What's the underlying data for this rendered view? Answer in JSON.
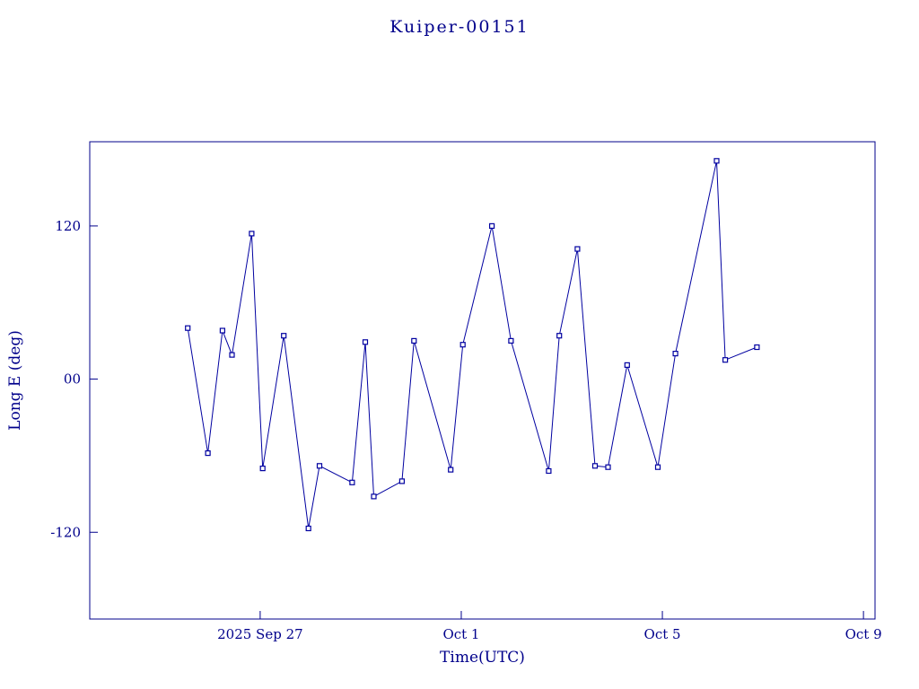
{
  "colors": {
    "axis": "#00008b",
    "text": "#00008b",
    "line": "#0000a0",
    "marker": "#0000a0",
    "background": "#ffffff"
  },
  "chart_data": {
    "type": "line",
    "title": "Kuiper-00151",
    "xlabel": "Time(UTC)",
    "ylabel": "Long E (deg)",
    "x_unit": "day of 2025 (September continuous; Oct 1 = 31, Oct 5 = 35, Oct 9 = 39)",
    "y_unit": "degrees",
    "xlim": [
      23.61,
      39.23
    ],
    "ylim": [
      -188,
      186
    ],
    "grid": false,
    "legend": "none",
    "marker": "open-square",
    "x_ticks": [
      {
        "value": 27,
        "label": "2025 Sep 27"
      },
      {
        "value": 31,
        "label": "Oct 1"
      },
      {
        "value": 35,
        "label": "Oct 5"
      },
      {
        "value": 39,
        "label": "Oct 9"
      }
    ],
    "y_ticks": [
      {
        "value": -120,
        "label": "-120"
      },
      {
        "value": 0,
        "label": "00"
      },
      {
        "value": 120,
        "label": "120"
      }
    ],
    "x": [
      25.56,
      25.96,
      26.25,
      26.44,
      26.83,
      27.05,
      27.47,
      27.96,
      28.18,
      28.83,
      29.09,
      29.26,
      29.82,
      30.06,
      30.79,
      31.03,
      31.61,
      31.99,
      32.74,
      32.95,
      33.31,
      33.66,
      33.92,
      34.3,
      34.91,
      35.26,
      36.08,
      36.25,
      36.88
    ],
    "y": [
      40,
      -58,
      38,
      19,
      114,
      -70,
      34,
      -117,
      -68,
      -81,
      29,
      -92,
      -80,
      30,
      -71,
      27,
      120,
      30,
      -72,
      34,
      102,
      -68,
      -69,
      11,
      -69,
      20,
      171,
      15,
      25
    ]
  }
}
